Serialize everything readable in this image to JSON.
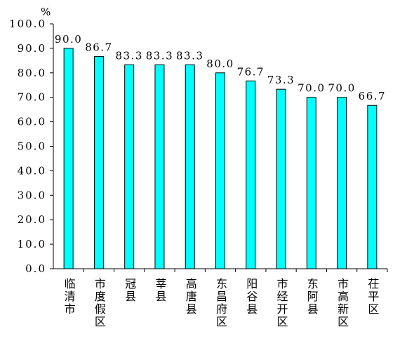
{
  "chart_data": {
    "type": "bar",
    "unit": "%",
    "categories": [
      "临清市",
      "市度假区",
      "冠县",
      "莘县",
      "高唐县",
      "东昌府区",
      "阳谷县",
      "市经开区",
      "东阿县",
      "市高新区",
      "茌平区"
    ],
    "values": [
      90.0,
      86.7,
      83.3,
      83.3,
      83.3,
      80.0,
      76.7,
      73.3,
      70.0,
      70.0,
      66.7
    ],
    "value_labels": [
      "90.0",
      "86.7",
      "83.3",
      "83.3",
      "83.3",
      "80.0",
      "76.7",
      "73.3",
      "70.0",
      "70.0",
      "66.7"
    ],
    "ylim": [
      0,
      100
    ],
    "yticks": [
      "0.0",
      "10.0",
      "20.0",
      "30.0",
      "40.0",
      "50.0",
      "60.0",
      "70.0",
      "80.0",
      "90.0",
      "100.0"
    ],
    "bar_color": "#00FFFF",
    "bar_stroke": "#000000",
    "grid": false,
    "legend": "none"
  }
}
